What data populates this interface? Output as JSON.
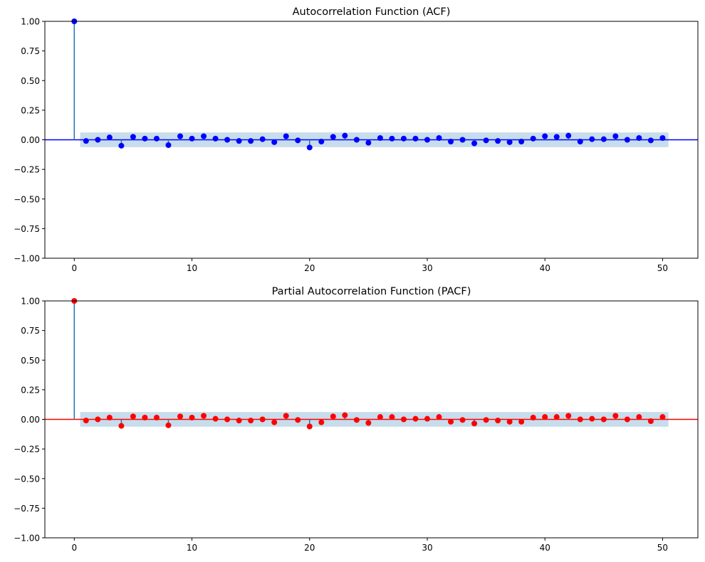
{
  "chart_data": [
    {
      "type": "scatter",
      "subtype": "stem-correlogram",
      "title": "Autocorrelation Function (ACF)",
      "xlabel": "",
      "ylabel": "",
      "xlim": [
        -2.5,
        53
      ],
      "ylim": [
        -1.0,
        1.0
      ],
      "xticks": [
        0,
        10,
        20,
        30,
        40,
        50
      ],
      "xtick_labels": [
        "0",
        "10",
        "20",
        "30",
        "40",
        "50"
      ],
      "yticks": [
        -1.0,
        -0.75,
        -0.5,
        -0.25,
        0.0,
        0.25,
        0.5,
        0.75,
        1.0
      ],
      "ytick_labels": [
        "−1.00",
        "−0.75",
        "−0.50",
        "−0.25",
        "0.00",
        "0.25",
        "0.50",
        "0.75",
        "1.00"
      ],
      "grid": false,
      "marker_color": "#0000ff",
      "stem_color": "#1f77b4",
      "zero_line_color": "#0000ff",
      "confidence_band": {
        "lag_range": [
          0.5,
          50.5
        ],
        "lower": -0.062,
        "upper": 0.062,
        "color": "#1f77b4",
        "opacity": 0.25
      },
      "x": [
        0,
        1,
        2,
        3,
        4,
        5,
        6,
        7,
        8,
        9,
        10,
        11,
        12,
        13,
        14,
        15,
        16,
        17,
        18,
        19,
        20,
        21,
        22,
        23,
        24,
        25,
        26,
        27,
        28,
        29,
        30,
        31,
        32,
        33,
        34,
        35,
        36,
        37,
        38,
        39,
        40,
        41,
        42,
        43,
        44,
        45,
        46,
        47,
        48,
        49,
        50
      ],
      "values": [
        1.0,
        -0.01,
        0.0,
        0.02,
        -0.05,
        0.025,
        0.01,
        0.01,
        -0.045,
        0.03,
        0.01,
        0.03,
        0.01,
        0.0,
        -0.01,
        -0.01,
        0.005,
        -0.02,
        0.03,
        -0.005,
        -0.065,
        -0.015,
        0.025,
        0.035,
        0.0,
        -0.025,
        0.015,
        0.01,
        0.01,
        0.01,
        0.0,
        0.015,
        -0.015,
        0.0,
        -0.03,
        -0.005,
        -0.01,
        -0.02,
        -0.015,
        0.01,
        0.03,
        0.025,
        0.035,
        -0.015,
        0.005,
        0.005,
        0.03,
        0.0,
        0.015,
        -0.005,
        0.015
      ]
    },
    {
      "type": "scatter",
      "subtype": "stem-correlogram",
      "title": "Partial Autocorrelation Function (PACF)",
      "xlabel": "",
      "ylabel": "",
      "xlim": [
        -2.5,
        53
      ],
      "ylim": [
        -1.0,
        1.0
      ],
      "xticks": [
        0,
        10,
        20,
        30,
        40,
        50
      ],
      "xtick_labels": [
        "0",
        "10",
        "20",
        "30",
        "40",
        "50"
      ],
      "yticks": [
        -1.0,
        -0.75,
        -0.5,
        -0.25,
        0.0,
        0.25,
        0.5,
        0.75,
        1.0
      ],
      "ytick_labels": [
        "−1.00",
        "−0.75",
        "−0.50",
        "−0.25",
        "0.00",
        "0.25",
        "0.50",
        "0.75",
        "1.00"
      ],
      "grid": false,
      "marker_color": "#ff0000",
      "stem_color": "#1f77b4",
      "zero_line_color": "#ff0000",
      "confidence_band": {
        "lag_range": [
          0.5,
          50.5
        ],
        "lower": -0.062,
        "upper": 0.062,
        "color": "#1f77b4",
        "opacity": 0.25
      },
      "x": [
        0,
        1,
        2,
        3,
        4,
        5,
        6,
        7,
        8,
        9,
        10,
        11,
        12,
        13,
        14,
        15,
        16,
        17,
        18,
        19,
        20,
        21,
        22,
        23,
        24,
        25,
        26,
        27,
        28,
        29,
        30,
        31,
        32,
        33,
        34,
        35,
        36,
        37,
        38,
        39,
        40,
        41,
        42,
        43,
        44,
        45,
        46,
        47,
        48,
        49,
        50
      ],
      "values": [
        1.0,
        -0.01,
        0.0,
        0.015,
        -0.055,
        0.025,
        0.015,
        0.015,
        -0.05,
        0.025,
        0.015,
        0.03,
        0.005,
        0.0,
        -0.01,
        -0.01,
        0.0,
        -0.025,
        0.03,
        -0.005,
        -0.06,
        -0.025,
        0.025,
        0.035,
        -0.005,
        -0.03,
        0.02,
        0.02,
        0.0,
        0.005,
        0.005,
        0.02,
        -0.02,
        -0.005,
        -0.035,
        -0.005,
        -0.01,
        -0.02,
        -0.02,
        0.015,
        0.02,
        0.02,
        0.03,
        0.0,
        0.005,
        0.0,
        0.03,
        0.0,
        0.02,
        -0.015,
        0.02
      ]
    }
  ]
}
